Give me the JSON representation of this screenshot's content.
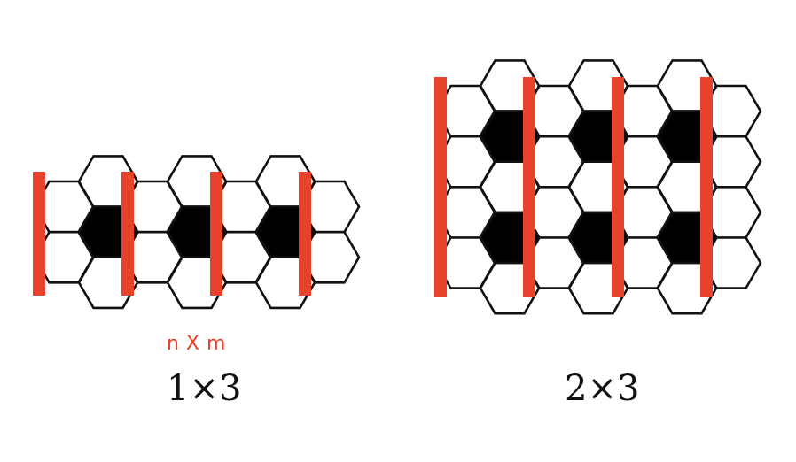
{
  "colors": {
    "bar": "#e8412c",
    "filled": "#000000",
    "stroke": "#111111",
    "background": "#ffffff"
  },
  "annotation": {
    "label": "n X m"
  },
  "figures": [
    {
      "caption": "1×3",
      "rows": 1,
      "cols": 3
    },
    {
      "caption": "2×3",
      "rows": 2,
      "cols": 3
    }
  ]
}
